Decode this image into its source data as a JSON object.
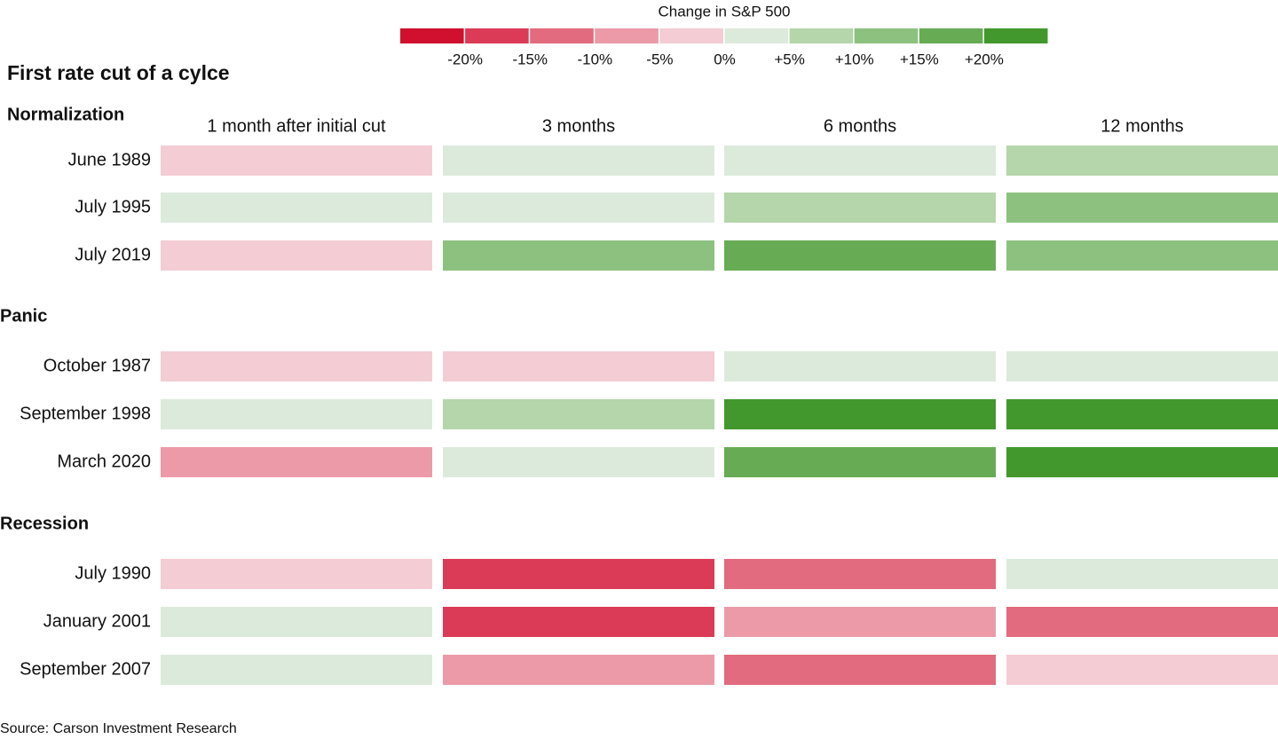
{
  "chart_data": {
    "type": "heatmap",
    "title": "First rate cut of a cylce",
    "legend_title": "Change in S&P 500",
    "source": "Source: Carson Investment Research",
    "columns": [
      "1 month after initial cut",
      "3 months",
      "6 months",
      "12 months"
    ],
    "color_lim": [
      -25,
      25
    ],
    "colors": [
      "#d10f2e",
      "#db3b57",
      "#e26b7f",
      "#ec9aa8",
      "#f4ccd4",
      "#dceadb",
      "#b4d6aa",
      "#8dc17f",
      "#68ab55",
      "#42982d"
    ],
    "color_ticks": [
      {
        "value": -20,
        "label": "-20%"
      },
      {
        "value": -15,
        "label": "-15%"
      },
      {
        "value": -10,
        "label": "-10%"
      },
      {
        "value": -5,
        "label": "-5%"
      },
      {
        "value": 0,
        "label": "0%"
      },
      {
        "value": 5,
        "label": "+5%"
      },
      {
        "value": 10,
        "label": "+10%"
      },
      {
        "value": 15,
        "label": "+15%"
      },
      {
        "value": 20,
        "label": "+20%"
      }
    ],
    "groups": [
      {
        "name": "Normalization",
        "rows": [
          "June 1989",
          "July 1995",
          "July 2019"
        ],
        "values": [
          [
            -2,
            3,
            3,
            8
          ],
          [
            2,
            3,
            7,
            13
          ],
          [
            -2,
            12,
            17,
            11
          ]
        ]
      },
      {
        "name": "Panic",
        "rows": [
          "October 1987",
          "September 1998",
          "March 2020"
        ],
        "values": [
          [
            -3,
            -3,
            2,
            2
          ],
          [
            2,
            8,
            22,
            22
          ],
          [
            -7,
            3,
            18,
            22
          ]
        ]
      },
      {
        "name": "Recession",
        "rows": [
          "July 1990",
          "January 2001",
          "September 2007"
        ],
        "values": [
          [
            -2,
            -17,
            -12,
            3
          ],
          [
            2,
            -17,
            -8,
            -12
          ],
          [
            2,
            -8,
            -12,
            -3
          ]
        ]
      }
    ]
  }
}
